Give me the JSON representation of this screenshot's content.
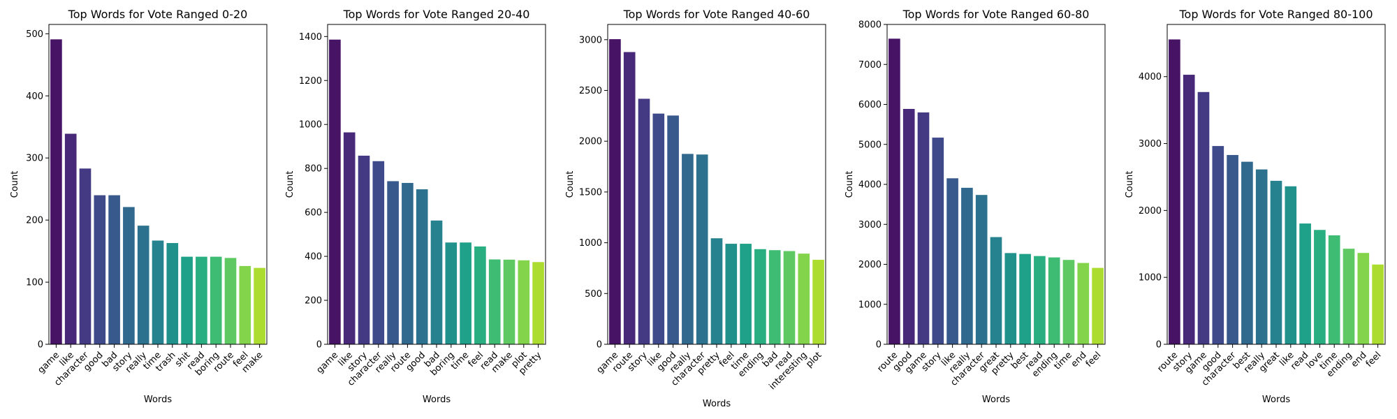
{
  "chart_data": [
    {
      "type": "bar",
      "title": "Top Words for Vote Ranged 0-20",
      "xlabel": "Words",
      "ylabel": "Count",
      "ylim": [
        0,
        515
      ],
      "yticks": [
        0,
        100,
        200,
        300,
        400,
        500
      ],
      "categories": [
        "game",
        "like",
        "character",
        "good",
        "bad",
        "story",
        "really",
        "time",
        "trash",
        "shit",
        "read",
        "boring",
        "route",
        "feel",
        "make"
      ],
      "values": [
        491,
        339,
        283,
        240,
        240,
        221,
        191,
        167,
        163,
        141,
        141,
        141,
        139,
        126,
        123
      ]
    },
    {
      "type": "bar",
      "title": "Top Words for Vote Ranged 20-40",
      "xlabel": "Words",
      "ylabel": "Count",
      "ylim": [
        0,
        1455
      ],
      "yticks": [
        0,
        200,
        400,
        600,
        800,
        1000,
        1200,
        1400
      ],
      "categories": [
        "game",
        "like",
        "story",
        "character",
        "really",
        "route",
        "good",
        "bad",
        "boring",
        "time",
        "feel",
        "read",
        "make",
        "plot",
        "pretty"
      ],
      "values": [
        1386,
        964,
        858,
        833,
        742,
        734,
        705,
        563,
        463,
        463,
        445,
        386,
        385,
        382,
        374
      ]
    },
    {
      "type": "bar",
      "title": "Top Words for Vote Ranged 40-60",
      "xlabel": "Words",
      "ylabel": "Count",
      "ylim": [
        0,
        3150
      ],
      "yticks": [
        0,
        500,
        1000,
        1500,
        2000,
        2500,
        3000
      ],
      "categories": [
        "game",
        "route",
        "story",
        "like",
        "good",
        "really",
        "character",
        "pretty",
        "feel",
        "time",
        "ending",
        "bad",
        "read",
        "interesting",
        "plot"
      ],
      "values": [
        3005,
        2878,
        2418,
        2272,
        2253,
        1875,
        1869,
        1044,
        990,
        990,
        937,
        927,
        918,
        893,
        832
      ]
    },
    {
      "type": "bar",
      "title": "Top Words for Vote Ranged 60-80",
      "xlabel": "Words",
      "ylabel": "Count",
      "ylim": [
        0,
        8000
      ],
      "yticks": [
        0,
        1000,
        2000,
        3000,
        4000,
        5000,
        6000,
        7000,
        8000
      ],
      "categories": [
        "route",
        "good",
        "game",
        "story",
        "like",
        "really",
        "character",
        "great",
        "pretty",
        "best",
        "read",
        "ending",
        "time",
        "end",
        "feel"
      ],
      "values": [
        7644,
        5887,
        5799,
        5169,
        4152,
        3914,
        3735,
        2681,
        2282,
        2259,
        2207,
        2173,
        2110,
        2034,
        1911
      ]
    },
    {
      "type": "bar",
      "title": "Top Words for Vote Ranged 80-100",
      "xlabel": "Words",
      "ylabel": "Count",
      "ylim": [
        0,
        4780
      ],
      "yticks": [
        0,
        1000,
        2000,
        3000,
        4000
      ],
      "categories": [
        "route",
        "story",
        "game",
        "good",
        "character",
        "best",
        "really",
        "great",
        "like",
        "read",
        "love",
        "time",
        "ending",
        "end",
        "feel"
      ],
      "values": [
        4556,
        4028,
        3770,
        2963,
        2829,
        2728,
        2613,
        2443,
        2361,
        1805,
        1709,
        1628,
        1428,
        1365,
        1192
      ]
    }
  ],
  "palette": [
    "#471365",
    "#482878",
    "#443a83",
    "#3e4a89",
    "#38598c",
    "#31688e",
    "#2c728e",
    "#26828e",
    "#21918c",
    "#1fa088",
    "#28ae80",
    "#3fbc73",
    "#5ec962",
    "#84d44b",
    "#addc30"
  ]
}
